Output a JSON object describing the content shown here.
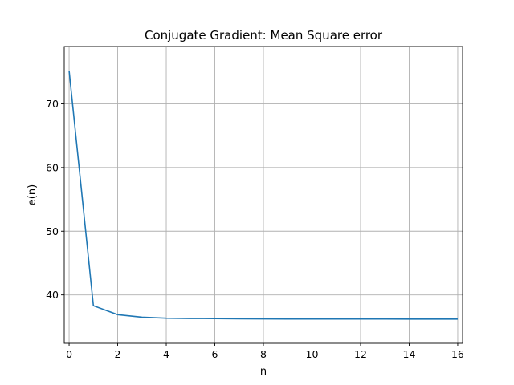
{
  "chart_data": {
    "type": "line",
    "title": "Conjugate Gradient: Mean Square error",
    "xlabel": "n",
    "ylabel": "e(n)",
    "xlim": [
      -0.2,
      16.2
    ],
    "ylim": [
      32.4,
      79.0
    ],
    "xticks": [
      0,
      2,
      4,
      6,
      8,
      10,
      12,
      14,
      16
    ],
    "yticks": [
      40,
      50,
      60,
      70
    ],
    "grid": true,
    "legend": "none",
    "series": [
      {
        "color": "#1f77b4",
        "x": [
          0,
          1,
          2,
          3,
          4,
          5,
          6,
          7,
          8,
          9,
          10,
          11,
          12,
          13,
          14,
          15,
          16
        ],
        "y": [
          75.2,
          38.3,
          36.9,
          36.5,
          36.35,
          36.3,
          36.28,
          36.25,
          36.23,
          36.22,
          36.22,
          36.21,
          36.21,
          36.21,
          36.2,
          36.2,
          36.2
        ]
      }
    ]
  }
}
